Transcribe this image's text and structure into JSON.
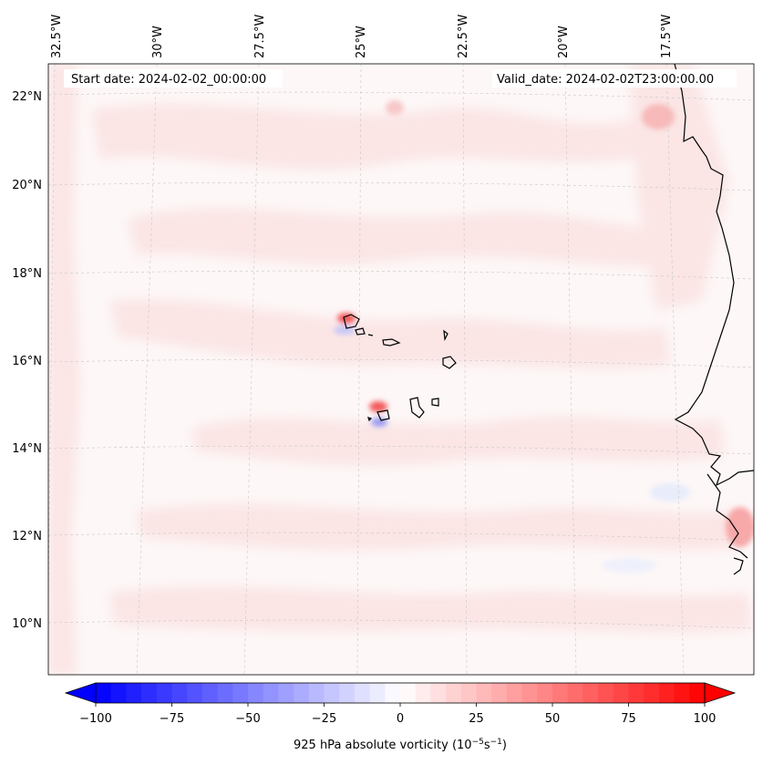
{
  "map": {
    "start_date_label": "Start date: 2024-02-02_00:00:00",
    "valid_date_label": "Valid_date: 2024-02-02T23:00:00.00",
    "longitude_labels": [
      "32.5°W",
      "30°W",
      "27.5°W",
      "25°W",
      "22.5°W",
      "20°W",
      "17.5°W"
    ],
    "latitude_labels": [
      "22°N",
      "20°N",
      "18°N",
      "16°N",
      "14°N",
      "12°N",
      "10°N"
    ],
    "field_colors": {
      "background": "#fdf6f6",
      "positive": "#ff0000",
      "negative": "#0000ff",
      "coastline": "#000000",
      "gridline": "#c8c8c8"
    }
  },
  "colorbar": {
    "tick_labels": [
      "−100",
      "−75",
      "−50",
      "−25",
      "0",
      "25",
      "50",
      "75",
      "100"
    ],
    "range": [
      -100,
      100
    ],
    "label_text": "925 hPa absolute vorticity (10",
    "label_sup1": "−5",
    "label_mid": "s",
    "label_sup2": "−1",
    "label_end": ")"
  }
}
